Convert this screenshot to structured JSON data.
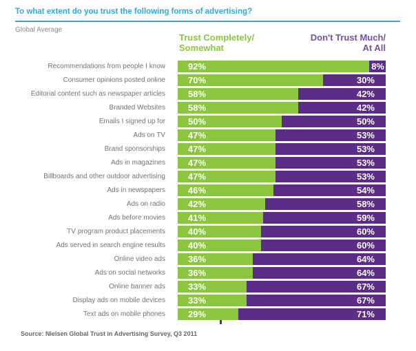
{
  "title": "To what extent do you trust the following forms of advertising?",
  "subtitle": "Global Average",
  "source": "Source: Nielsen Global Trust in Advertising Survey, Q3 2011",
  "legend": {
    "trust": {
      "line1": "Trust Completely/",
      "line2": "Somewhat"
    },
    "distrust": {
      "line1": "Don't Trust Much/",
      "line2": "At All"
    }
  },
  "colors": {
    "green": "#8CC63F",
    "purple": "#5C2D87",
    "legendPurple": "#7550A1",
    "cyan": "#29ABE2"
  },
  "chart_data": {
    "type": "bar",
    "orientation": "horizontal-stacked",
    "title": "To what extent do you trust the following forms of advertising?",
    "subtitle": "Global Average",
    "value_format": "percent",
    "xlim": [
      0,
      100
    ],
    "categories": [
      "Recommendations from people I know",
      "Consumer opinions posted online",
      "Editorial content such as newspaper articles",
      "Branded Websites",
      "Emails I signed up for",
      "Ads on TV",
      "Brand sponsorships",
      "Ads in magazines",
      "Billboards and other outdoor advertising",
      "Ads in newspapers",
      "Ads on radio",
      "Ads before movies",
      "TV program product placements",
      "Ads served in search engine results",
      "Online video ads",
      "Ads on social networks",
      "Online banner ads",
      "Display ads on mobile devices",
      "Text ads on mobile phones"
    ],
    "series": [
      {
        "name": "Trust Completely/Somewhat",
        "values": [
          92,
          70,
          58,
          58,
          50,
          47,
          47,
          47,
          47,
          46,
          42,
          41,
          40,
          40,
          36,
          36,
          33,
          33,
          29
        ]
      },
      {
        "name": "Don't Trust Much/At All",
        "values": [
          8,
          30,
          42,
          42,
          50,
          53,
          53,
          53,
          53,
          54,
          58,
          59,
          60,
          60,
          64,
          64,
          67,
          67,
          71
        ]
      }
    ],
    "legend_position": "top"
  }
}
